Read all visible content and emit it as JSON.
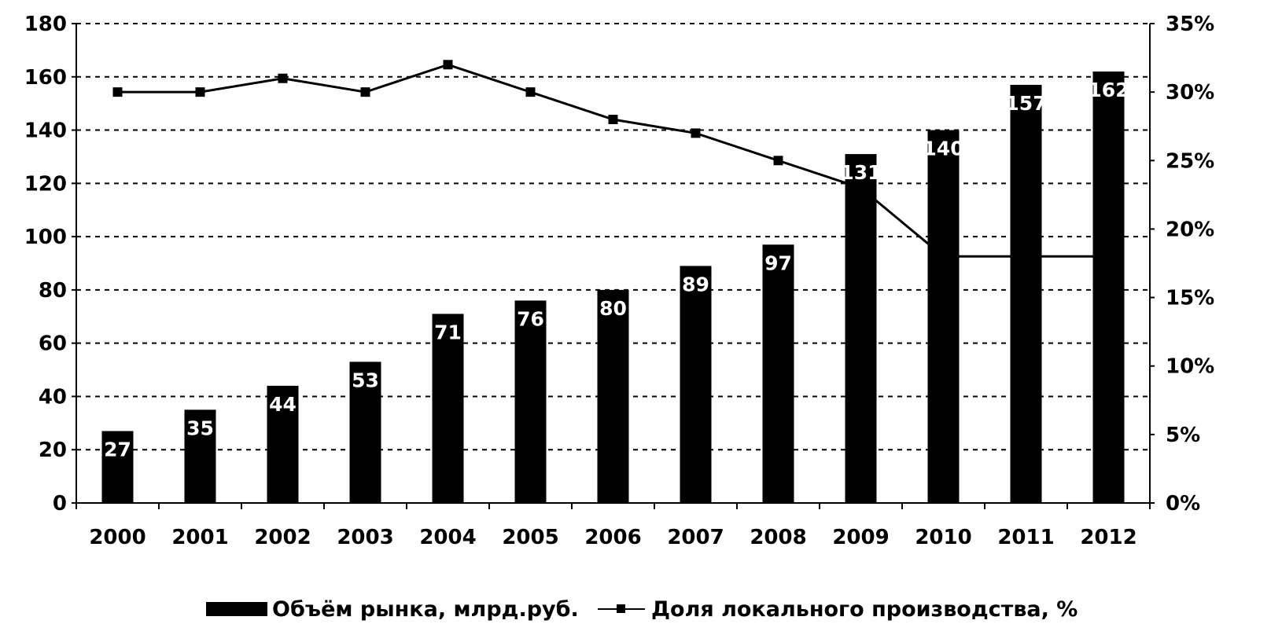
{
  "chart_data": {
    "type": "bar",
    "categories": [
      "2000",
      "2001",
      "2002",
      "2003",
      "2004",
      "2005",
      "2006",
      "2007",
      "2008",
      "2009",
      "2010",
      "2011",
      "2012"
    ],
    "series": [
      {
        "name": "Объём рынка, млрд.руб.",
        "type": "bar",
        "axis": "left",
        "values": [
          27,
          35,
          44,
          53,
          71,
          76,
          80,
          89,
          97,
          131,
          140,
          157,
          162
        ],
        "labels": [
          "27",
          "35",
          "44",
          "53",
          "71",
          "76",
          "80",
          "89",
          "97",
          "131",
          "140",
          "157",
          "162"
        ]
      },
      {
        "name": "Доля локального производства, %",
        "type": "line",
        "axis": "right",
        "values": [
          30,
          30,
          31,
          30,
          32,
          30,
          28,
          27,
          25,
          23,
          18,
          18,
          18
        ]
      }
    ],
    "y_left": {
      "min": 0,
      "max": 180,
      "step": 20,
      "ticks": [
        "0",
        "20",
        "40",
        "60",
        "80",
        "100",
        "120",
        "140",
        "160",
        "180"
      ]
    },
    "y_right": {
      "min": 0,
      "max": 35,
      "step": 5,
      "ticks": [
        "0%",
        "5%",
        "10%",
        "15%",
        "20%",
        "25%",
        "30%",
        "35%"
      ]
    },
    "grid": true,
    "grid_style": "dashed",
    "legend_position": "bottom",
    "colors": {
      "bar": "#000000",
      "line": "#000000",
      "label": "#ffffff",
      "grid": "#000000"
    }
  },
  "legend": {
    "bar_label": "Объём рынка, млрд.руб.",
    "line_label": "Доля локального производства, %"
  }
}
